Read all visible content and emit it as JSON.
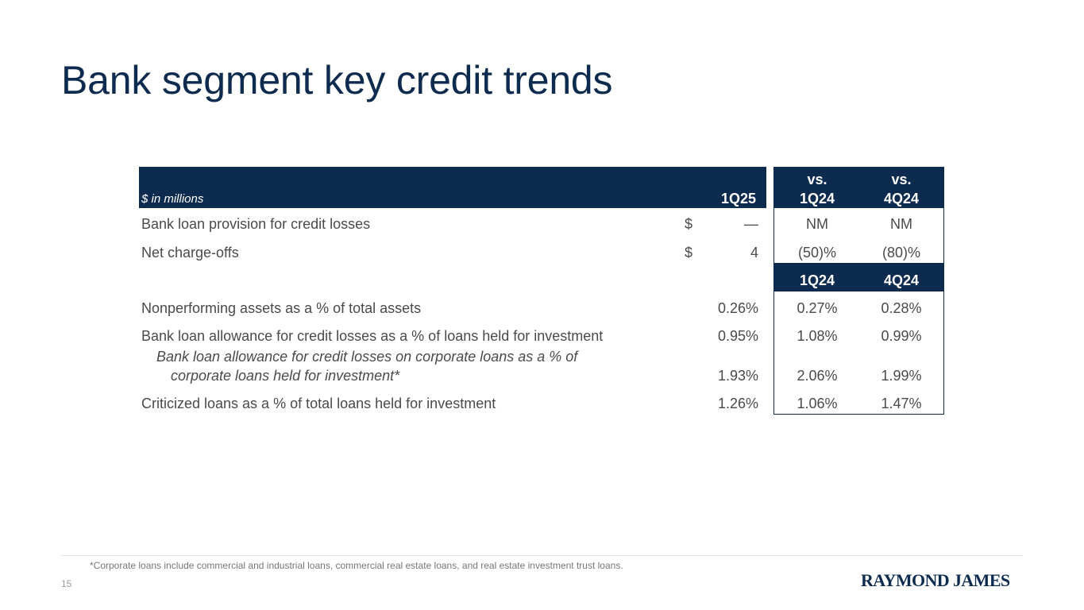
{
  "title": "Bank segment key credit trends",
  "table": {
    "units_label": "$ in millions",
    "col_current": "1Q25",
    "col_vs1_top": "vs.",
    "col_vs1_bottom": "1Q24",
    "col_vs2_top": "vs.",
    "col_vs2_bottom": "4Q24",
    "sub_col1": "1Q24",
    "sub_col2": "4Q24",
    "rows": [
      {
        "label": "Bank loan provision for credit losses",
        "currency": "$",
        "value": "—",
        "c1": "NM",
        "c2": "NM"
      },
      {
        "label": "Net charge-offs",
        "currency": "$",
        "value": "4",
        "c1": "(50)%",
        "c2": "(80)%"
      },
      {
        "label": "Nonperforming assets as a % of total assets",
        "value": "0.26%",
        "c1": "0.27%",
        "c2": "0.28%"
      },
      {
        "label": "Bank loan allowance for credit losses as a % of loans held for investment",
        "value": "0.95%",
        "c1": "1.08%",
        "c2": "0.99%"
      },
      {
        "label_line1": "Bank loan allowance for credit losses on corporate loans as a % of",
        "label_line2": "corporate loans held for investment*",
        "value": "1.93%",
        "c1": "2.06%",
        "c2": "1.99%"
      },
      {
        "label": "Criticized loans as a % of total loans held for investment",
        "value": "1.26%",
        "c1": "1.06%",
        "c2": "1.47%"
      }
    ]
  },
  "footnote": "*Corporate loans include commercial and industrial loans, commercial real estate loans, and real estate investment trust loans.",
  "page_number": "15",
  "logo_text": "RAYMOND JAMES",
  "colors": {
    "navy": "#0d2b4e",
    "text": "#4a4a4a"
  }
}
